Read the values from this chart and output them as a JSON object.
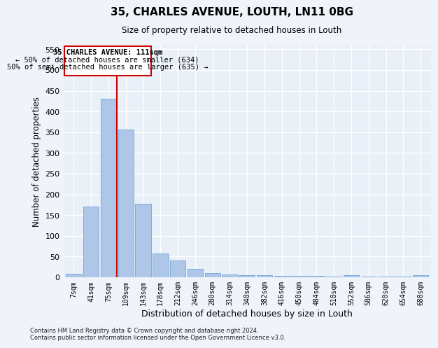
{
  "title": "35, CHARLES AVENUE, LOUTH, LN11 0BG",
  "subtitle": "Size of property relative to detached houses in Louth",
  "xlabel": "Distribution of detached houses by size in Louth",
  "ylabel": "Number of detached properties",
  "bar_labels": [
    "7sqm",
    "41sqm",
    "75sqm",
    "109sqm",
    "143sqm",
    "178sqm",
    "212sqm",
    "246sqm",
    "280sqm",
    "314sqm",
    "348sqm",
    "382sqm",
    "416sqm",
    "450sqm",
    "484sqm",
    "518sqm",
    "552sqm",
    "586sqm",
    "620sqm",
    "654sqm",
    "688sqm"
  ],
  "bar_values": [
    8,
    170,
    430,
    356,
    178,
    57,
    40,
    20,
    10,
    6,
    5,
    4,
    3,
    3,
    3,
    1,
    5,
    1,
    1,
    1,
    5
  ],
  "bar_color": "#aec6e8",
  "bar_edgecolor": "#5b9bd5",
  "bg_color": "#eaf0f8",
  "grid_color": "#ffffff",
  "fig_color": "#f0f4fa",
  "ylim": [
    0,
    560
  ],
  "yticks": [
    0,
    50,
    100,
    150,
    200,
    250,
    300,
    350,
    400,
    450,
    500,
    550
  ],
  "vline_color": "#cc0000",
  "annotation_title": "35 CHARLES AVENUE: 111sqm",
  "annotation_line1": "← 50% of detached houses are smaller (634)",
  "annotation_line2": "50% of semi-detached houses are larger (635) →",
  "footer1": "Contains HM Land Registry data © Crown copyright and database right 2024.",
  "footer2": "Contains public sector information licensed under the Open Government Licence v3.0."
}
